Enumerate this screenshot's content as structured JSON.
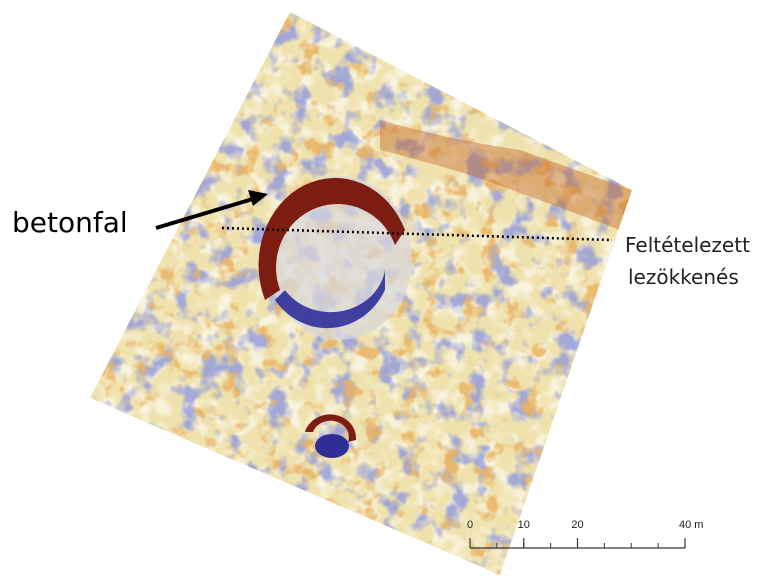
{
  "annotations": {
    "wall": "betonfal",
    "fault_line1": "Feltételezett",
    "fault_line2": "lezökkenés"
  },
  "scale_bar": {
    "ticks": [
      {
        "value": 0,
        "label": "0"
      },
      {
        "value": 10,
        "label": "10"
      },
      {
        "value": 20,
        "label": "20"
      },
      {
        "value": 40,
        "label": "40 m"
      }
    ]
  }
}
